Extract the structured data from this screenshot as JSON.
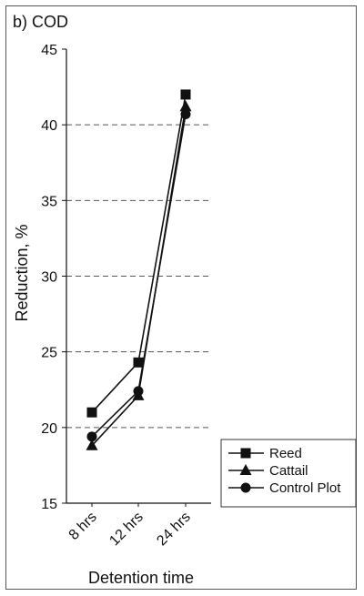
{
  "chart_data": {
    "panel_title": "b) COD",
    "type": "line",
    "categories": [
      "8 hrs",
      "12 hrs",
      "24 hrs"
    ],
    "xlabel": "Detention time",
    "ylabel": "Reduction, %",
    "ylim": [
      15,
      45
    ],
    "yticks": [
      15,
      20,
      25,
      30,
      35,
      40,
      45
    ],
    "grid": "dashed horizontal",
    "legend_position": "bottom-right",
    "series": [
      {
        "name": "Reed",
        "marker": "square",
        "color": "#111111",
        "values": [
          21.0,
          24.3,
          42.0
        ]
      },
      {
        "name": "Cattail",
        "marker": "triangle",
        "color": "#111111",
        "values": [
          18.8,
          22.1,
          41.2
        ]
      },
      {
        "name": "Control Plot",
        "marker": "circle",
        "color": "#111111",
        "values": [
          19.4,
          22.4,
          40.7
        ]
      }
    ]
  }
}
